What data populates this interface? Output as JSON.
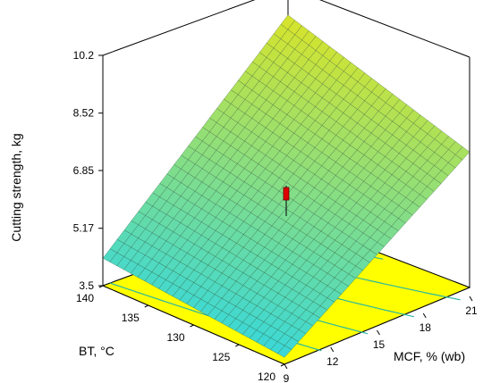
{
  "chart_data": {
    "type": "surface3d",
    "title": "",
    "zlabel": "Cutting strength, kg",
    "xlabel": "BT, °C",
    "ylabel": "MCF, % (wb)",
    "z_ticks": [
      "3.5",
      "5.17",
      "6.85",
      "8.52",
      "10.2"
    ],
    "z_range": [
      3.5,
      10.2
    ],
    "bt_ticks": [
      "140",
      "135",
      "130",
      "125",
      "120"
    ],
    "bt_range": [
      120,
      140
    ],
    "mcf_ticks": [
      "9",
      "12",
      "15",
      "18",
      "21"
    ],
    "mcf_range": [
      9,
      21
    ],
    "corner_values": [
      {
        "bt": 140,
        "mcf": 9,
        "z": 4.3
      },
      {
        "bt": 140,
        "mcf": 21,
        "z": 9.4
      },
      {
        "bt": 120,
        "mcf": 9,
        "z": 3.7
      },
      {
        "bt": 120,
        "mcf": 21,
        "z": 7.7
      }
    ],
    "design_point": {
      "bt": 130,
      "mcf": 15,
      "z": 6.2
    },
    "colors": {
      "surface_low": "#3ad8d8",
      "surface_high": "#d8e42a",
      "mesh": "#1a3a2a",
      "floor": "#ffff00",
      "contour": "#2ab8a0",
      "marker": "#e00000"
    }
  }
}
